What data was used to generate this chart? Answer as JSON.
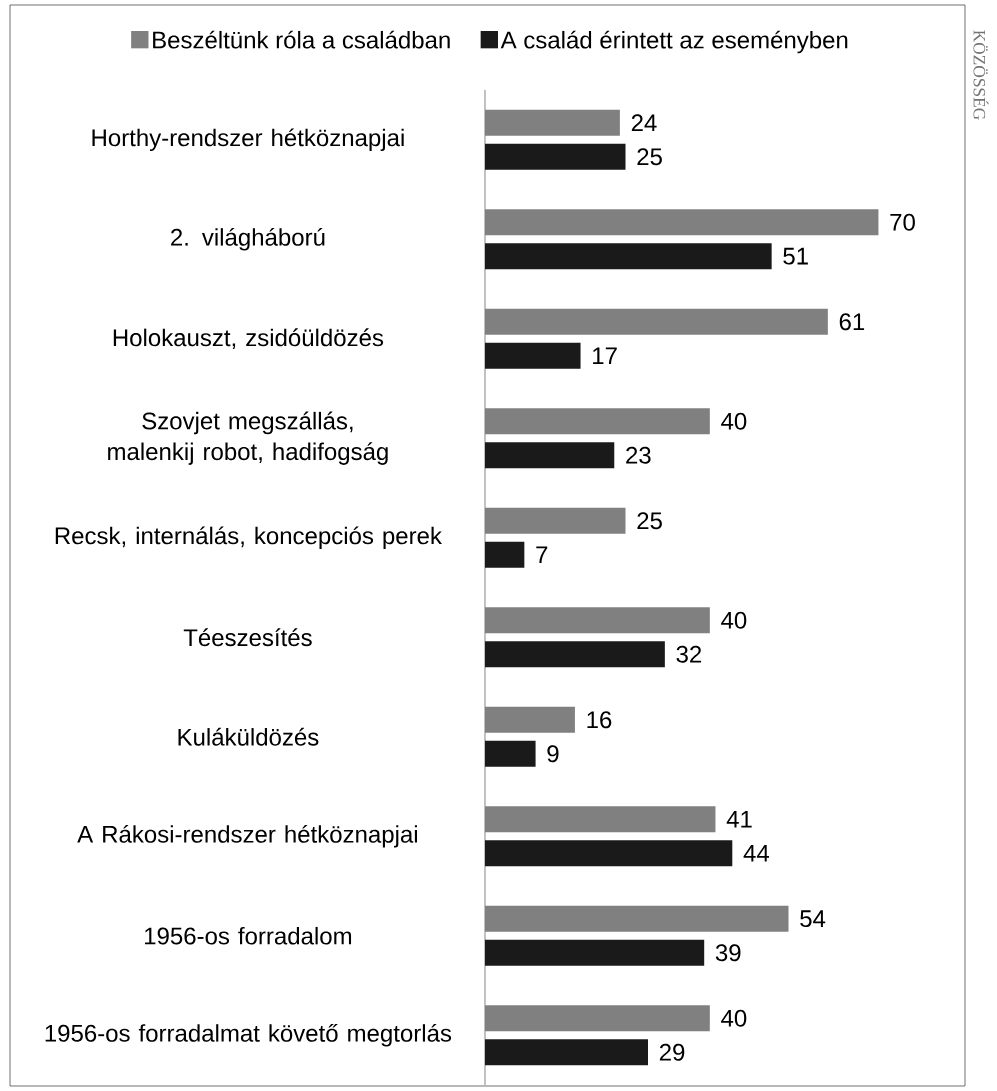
{
  "chart_data": {
    "type": "bar",
    "orientation": "horizontal",
    "categories": [
      "Horthy-rendszer hétköznapjai",
      "2. világháború",
      "Holokauszt, zsidóüldözés",
      "Szovjet megszállás, malenkij robot, hadifogság",
      "Recsk, internálás, koncepciós perek",
      "Téeszesítés",
      "Kuláküldözés",
      "A Rákosi-rendszer hétköznapjai",
      "1956-os forradalom",
      "1956-os forradalmat követő megtorlás"
    ],
    "series": [
      {
        "name": "Beszéltünk róla a családban",
        "color": "#808080",
        "values": [
          24,
          70,
          61,
          40,
          25,
          40,
          16,
          41,
          54,
          40
        ]
      },
      {
        "name": "A család érintett az eseményben",
        "color": "#1a1a1a",
        "values": [
          25,
          51,
          17,
          23,
          7,
          32,
          9,
          44,
          39,
          29
        ]
      }
    ],
    "data_labels": true,
    "legend": "top",
    "annotations": [
      "KÖZÖSSÉG"
    ]
  }
}
